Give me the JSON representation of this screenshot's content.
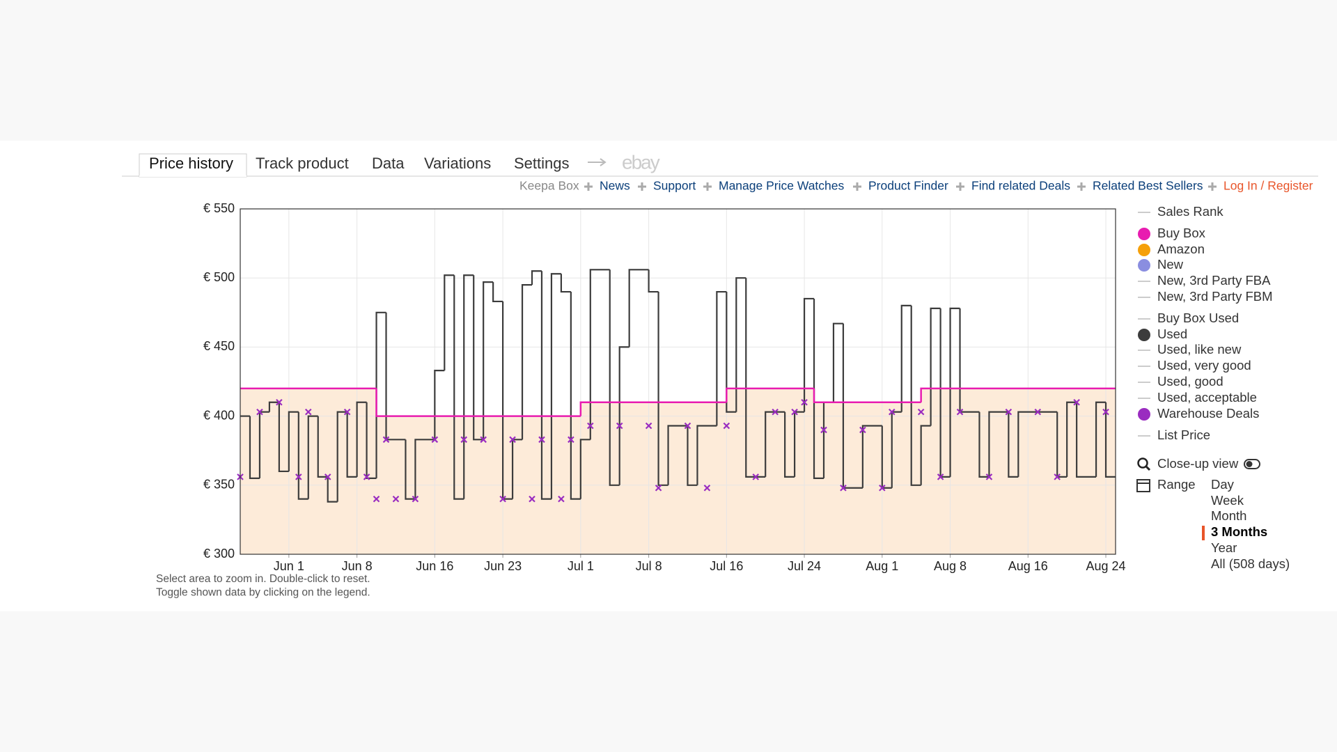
{
  "tabs": [
    "Price history",
    "Track product",
    "Data",
    "Variations",
    "Settings"
  ],
  "ebay": "ebay",
  "links": [
    "Keepa Box",
    "News",
    "Support",
    "Manage Price Watches",
    "Product Finder",
    "Find related Deals",
    "Related Best Sellers",
    "Log In / Register"
  ],
  "chart_data": {
    "type": "line",
    "xlim": [
      "05-27",
      "08-25"
    ],
    "xticks": [
      {
        "value": "06-01",
        "label": "Jun 1"
      },
      {
        "value": "06-08",
        "label": "Jun 8"
      },
      {
        "value": "06-16",
        "label": "Jun 16"
      },
      {
        "value": "06-23",
        "label": "Jun 23"
      },
      {
        "value": "07-01",
        "label": "Jul 1"
      },
      {
        "value": "07-08",
        "label": "Jul 8"
      },
      {
        "value": "07-16",
        "label": "Jul 16"
      },
      {
        "value": "07-24",
        "label": "Jul 24"
      },
      {
        "value": "08-01",
        "label": "Aug 1"
      },
      {
        "value": "08-08",
        "label": "Aug 8"
      },
      {
        "value": "08-16",
        "label": "Aug 16"
      },
      {
        "value": "08-24",
        "label": "Aug 24"
      }
    ],
    "ylim": [
      300,
      550
    ],
    "yticks": [
      {
        "value": 300,
        "label": "€ 300"
      },
      {
        "value": 350,
        "label": "€ 350"
      },
      {
        "value": 400,
        "label": "€ 400"
      },
      {
        "value": 450,
        "label": "€ 450"
      },
      {
        "value": 500,
        "label": "€ 500"
      },
      {
        "value": 550,
        "label": "€ 550"
      }
    ],
    "grid": true,
    "series": [
      {
        "name": "Buy Box",
        "color": "#e81cb0",
        "style": "step",
        "x": [
          "05-27",
          "06-10",
          "07-01",
          "07-16",
          "07-25",
          "08-05"
        ],
        "values": [
          420,
          400,
          410,
          420,
          410,
          420
        ]
      },
      {
        "name": "Used",
        "color": "#3c3c3c",
        "style": "step",
        "x": [
          "05-27",
          "05-28",
          "05-29",
          "05-30",
          "05-31",
          "06-01",
          "06-02",
          "06-03",
          "06-04",
          "06-05",
          "06-06",
          "06-07",
          "06-08",
          "06-09",
          "06-10",
          "06-11",
          "06-13",
          "06-14",
          "06-16",
          "06-17",
          "06-18",
          "06-19",
          "06-20",
          "06-21",
          "06-22",
          "06-23",
          "06-24",
          "06-25",
          "06-26",
          "06-27",
          "06-28",
          "06-29",
          "06-30",
          "07-01",
          "07-02",
          "07-04",
          "07-05",
          "07-06",
          "07-08",
          "07-09",
          "07-10",
          "07-12",
          "07-13",
          "07-15",
          "07-16",
          "07-17",
          "07-18",
          "07-20",
          "07-22",
          "07-23",
          "07-24",
          "07-25",
          "07-26",
          "07-27",
          "07-28",
          "07-30",
          "08-01",
          "08-02",
          "08-03",
          "08-04",
          "08-05",
          "08-06",
          "08-07",
          "08-08",
          "08-09",
          "08-11",
          "08-12",
          "08-14",
          "08-15",
          "08-19",
          "08-20",
          "08-21",
          "08-23",
          "08-24"
        ],
        "values": [
          400,
          355,
          403,
          410,
          360,
          403,
          340,
          400,
          356,
          338,
          403,
          356,
          410,
          355,
          475,
          383,
          340,
          383,
          433,
          502,
          340,
          502,
          383,
          497,
          483,
          340,
          383,
          495,
          505,
          340,
          503,
          490,
          340,
          383,
          506,
          350,
          450,
          506,
          490,
          350,
          393,
          350,
          393,
          490,
          403,
          500,
          356,
          403,
          356,
          403,
          485,
          355,
          410,
          467,
          348,
          393,
          348,
          403,
          480,
          350,
          393,
          478,
          356,
          478,
          403,
          356,
          403,
          356,
          403,
          356,
          410,
          356,
          410,
          356
        ]
      },
      {
        "name": "Warehouse Deals",
        "color": "#9a2cc0",
        "style": "marker",
        "x": [
          "05-27",
          "05-29",
          "05-31",
          "06-02",
          "06-03",
          "06-05",
          "06-07",
          "06-09",
          "06-10",
          "06-11",
          "06-12",
          "06-14",
          "06-16",
          "06-19",
          "06-21",
          "06-23",
          "06-24",
          "06-26",
          "06-27",
          "06-29",
          "06-30",
          "07-02",
          "07-05",
          "07-08",
          "07-09",
          "07-12",
          "07-14",
          "07-16",
          "07-19",
          "07-21",
          "07-23",
          "07-24",
          "07-26",
          "07-28",
          "07-30",
          "08-01",
          "08-02",
          "08-05",
          "08-07",
          "08-09",
          "08-12",
          "08-14",
          "08-17",
          "08-19",
          "08-21",
          "08-24"
        ],
        "values": [
          356,
          403,
          410,
          356,
          403,
          356,
          403,
          356,
          340,
          383,
          340,
          340,
          383,
          383,
          383,
          340,
          383,
          340,
          383,
          340,
          383,
          393,
          393,
          393,
          348,
          393,
          348,
          393,
          356,
          403,
          403,
          410,
          390,
          348,
          390,
          348,
          403,
          403,
          356,
          403,
          356,
          403,
          403,
          356,
          410,
          403
        ]
      }
    ],
    "legend": [
      {
        "name": "Sales Rank"
      },
      {
        "name": "Amazon",
        "color": "#f5a00a"
      },
      {
        "name": "New",
        "color": "#8a8ee0"
      },
      {
        "name": "New, 3rd Party FBA"
      },
      {
        "name": "New, 3rd Party FBM"
      },
      {
        "name": "Buy Box Used"
      },
      {
        "name": "Used, like new"
      },
      {
        "name": "Used, very good"
      },
      {
        "name": "Used, good"
      },
      {
        "name": "Used, acceptable"
      },
      {
        "name": "List Price"
      }
    ],
    "closeup": "Close-up view",
    "range": {
      "label": "Range",
      "options": [
        "Day",
        "Week",
        "Month",
        "3 Months",
        "Year",
        "All (508 days)"
      ],
      "selected": "3 Months"
    },
    "notes": [
      "Select area to zoom in. Double-click to reset.",
      "Toggle shown data by clicking on the legend."
    ]
  }
}
